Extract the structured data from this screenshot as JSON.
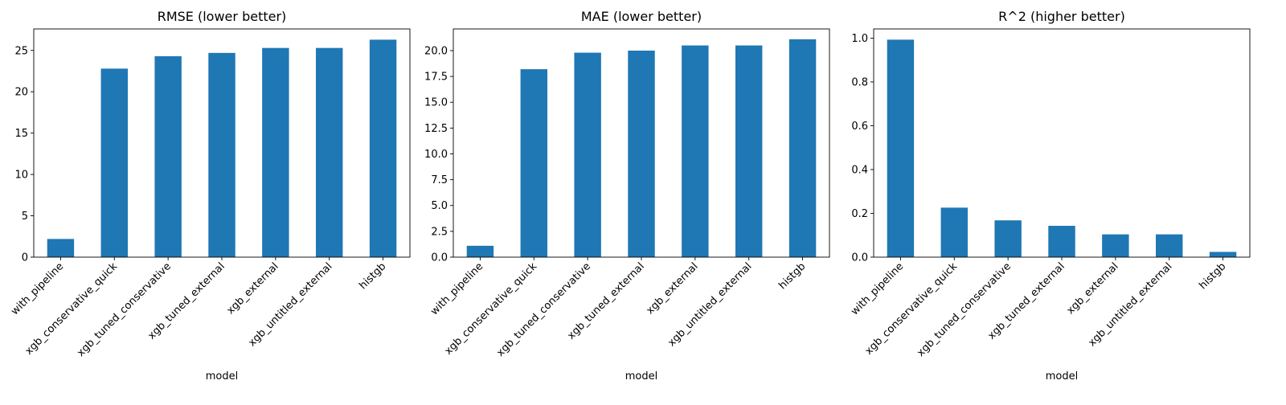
{
  "colors": {
    "bar": "#1f77b4",
    "axis": "#000000",
    "background": "#ffffff"
  },
  "chart_data": [
    {
      "type": "bar",
      "title": "RMSE (lower better)",
      "xlabel": "model",
      "ylabel": "",
      "categories": [
        "with_pipeline",
        "xgb_conservative_quick",
        "xgb_tuned_conservative",
        "xgb_tuned_external",
        "xgb_external",
        "xgb_untitled_external",
        "histgb"
      ],
      "values": [
        2.2,
        22.8,
        24.3,
        24.7,
        25.3,
        25.3,
        26.3
      ],
      "ylim": [
        0,
        27.6
      ],
      "yticks": [
        0,
        5,
        10,
        15,
        20,
        25
      ],
      "ytick_labels": [
        "0",
        "5",
        "10",
        "15",
        "20",
        "25"
      ],
      "grid": false,
      "legend": "none"
    },
    {
      "type": "bar",
      "title": "MAE (lower better)",
      "xlabel": "model",
      "ylabel": "",
      "categories": [
        "with_pipeline",
        "xgb_conservative_quick",
        "xgb_tuned_conservative",
        "xgb_tuned_external",
        "xgb_external",
        "xgb_untitled_external",
        "histgb"
      ],
      "values": [
        1.1,
        18.2,
        19.8,
        20.0,
        20.5,
        20.5,
        21.1
      ],
      "ylim": [
        0,
        22.1
      ],
      "yticks": [
        0,
        2.5,
        5,
        7.5,
        10,
        12.5,
        15,
        17.5,
        20
      ],
      "ytick_labels": [
        "0.0",
        "2.5",
        "5.0",
        "7.5",
        "10.0",
        "12.5",
        "15.0",
        "17.5",
        "20.0"
      ],
      "grid": false,
      "legend": "none"
    },
    {
      "type": "bar",
      "title": "R^2 (higher better)",
      "xlabel": "model",
      "ylabel": "",
      "categories": [
        "with_pipeline",
        "xgb_conservative_quick",
        "xgb_tuned_conservative",
        "xgb_tuned_external",
        "xgb_external",
        "xgb_untitled_external",
        "histgb"
      ],
      "values": [
        0.993,
        0.226,
        0.168,
        0.143,
        0.104,
        0.104,
        0.024
      ],
      "ylim": [
        0,
        1.042
      ],
      "yticks": [
        0,
        0.2,
        0.4,
        0.6,
        0.8,
        1.0
      ],
      "ytick_labels": [
        "0.0",
        "0.2",
        "0.4",
        "0.6",
        "0.8",
        "1.0"
      ],
      "grid": false,
      "legend": "none"
    }
  ]
}
